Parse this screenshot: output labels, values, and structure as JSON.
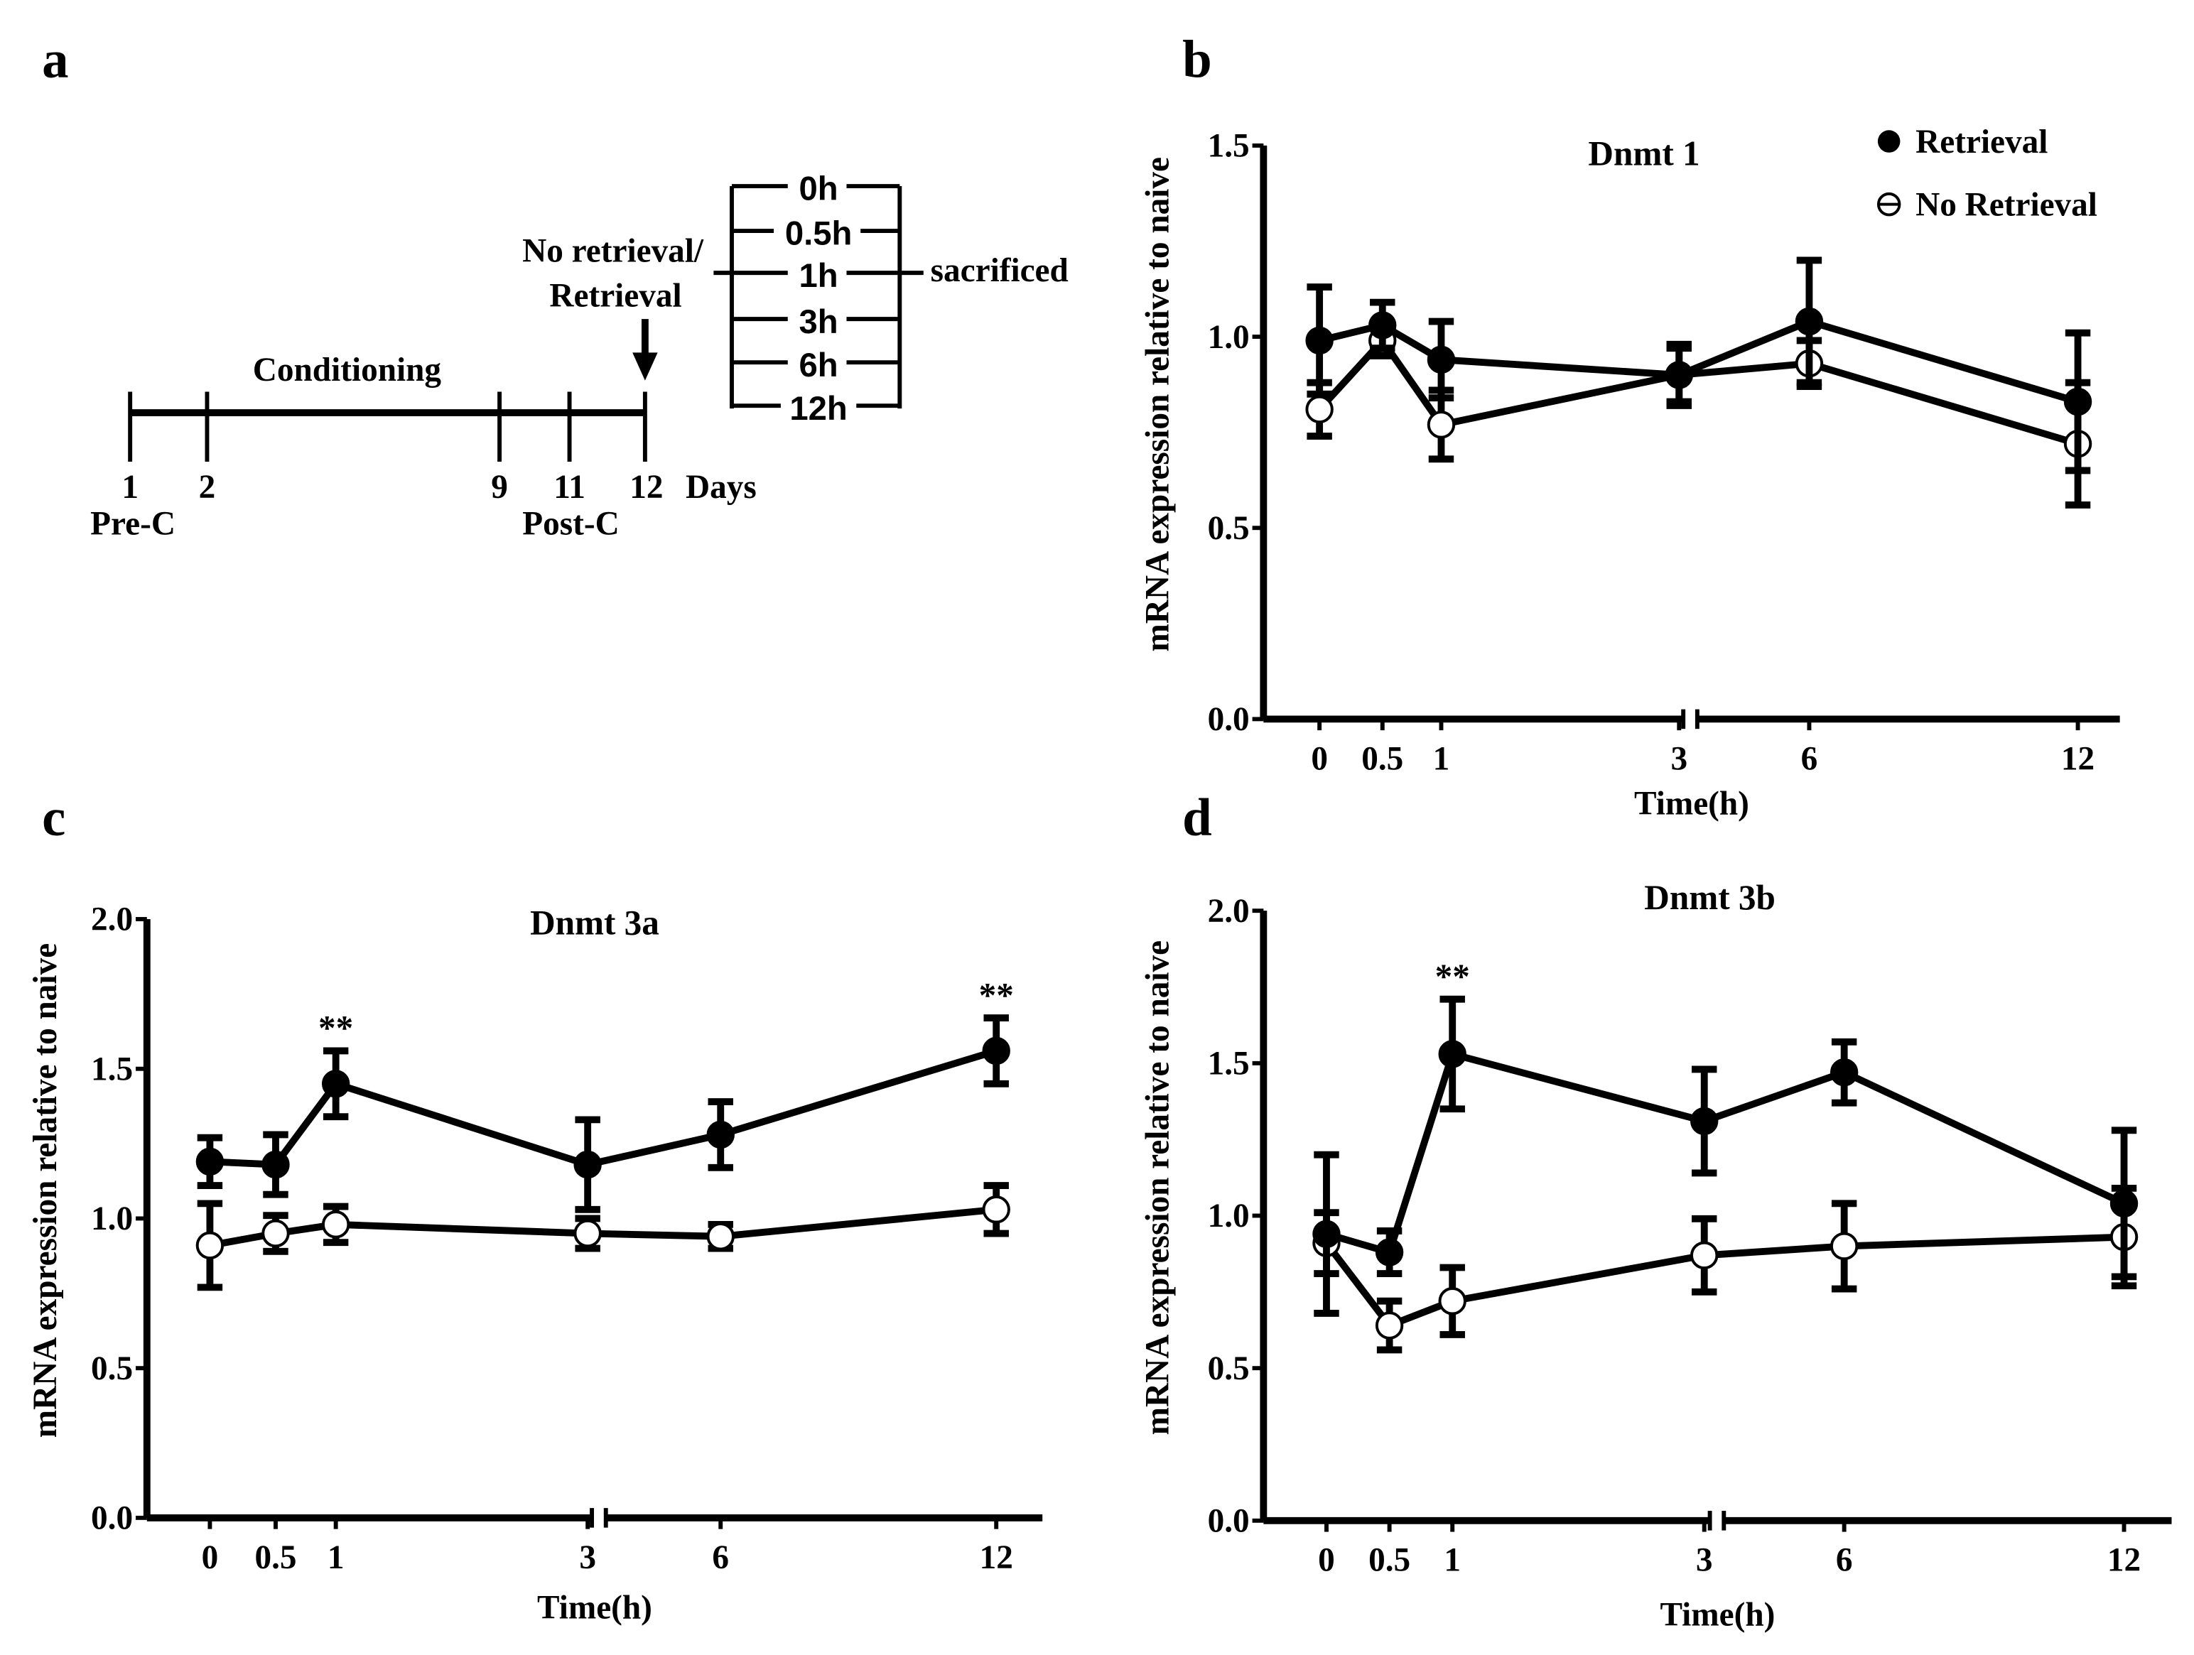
{
  "panel_a": {
    "label": "a",
    "conditioning": "Conditioning",
    "retrieval_line1": "No retrieval/",
    "retrieval_line2": "Retrieval",
    "day_ticks": [
      "1",
      "2",
      "9",
      "11",
      "12"
    ],
    "days_label": "Days",
    "pre_c": "Pre-C",
    "post_c": "Post-C",
    "timepoints": [
      "0h",
      "0.5h",
      "1h",
      "3h",
      "6h",
      "12h"
    ],
    "sacrificed": "sacrificed"
  },
  "legend": {
    "retrieval": "Retrieval",
    "no_retrieval": "No Retrieval"
  },
  "chart_data": [
    {
      "panel": "b",
      "type": "line",
      "title": "Dnmt 1",
      "xlabel": "Time(h)",
      "ylabel": "mRNA expression relative to naive",
      "x": [
        0,
        0.5,
        1,
        3,
        6,
        12
      ],
      "x_ticks": [
        "0",
        "0.5",
        "1",
        "3",
        "6",
        "12"
      ],
      "ylim": [
        0,
        1.5
      ],
      "y_ticks": [
        "0.0",
        "0.5",
        "1.0",
        "1.5"
      ],
      "y_tick_values": [
        0,
        0.5,
        1.0,
        1.5
      ],
      "axis_break": "between 3 and 6",
      "legend_position": "top-right",
      "series": [
        {
          "name": "Retrieval",
          "marker": "filled-circle",
          "values": [
            0.99,
            1.03,
            0.94,
            0.9,
            1.04,
            0.83
          ],
          "error": [
            0.14,
            0.06,
            0.1,
            0.08,
            0.16,
            0.18
          ]
        },
        {
          "name": "No Retrieval",
          "marker": "open-circle",
          "values": [
            0.81,
            0.99,
            0.77,
            0.9,
            0.93,
            0.72
          ],
          "error": [
            0.07,
            0.04,
            0.09,
            0.07,
            0.06,
            0.16
          ]
        }
      ],
      "annotations": []
    },
    {
      "panel": "c",
      "type": "line",
      "title": "Dnmt 3a",
      "xlabel": "Time(h)",
      "ylabel": "mRNA expression relative to naive",
      "x": [
        0,
        0.5,
        1,
        3,
        6,
        12
      ],
      "x_ticks": [
        "0",
        "0.5",
        "1",
        "3",
        "6",
        "12"
      ],
      "ylim": [
        0,
        2.0
      ],
      "y_ticks": [
        "0.0",
        "0.5",
        "1.0",
        "1.5",
        "2.0"
      ],
      "y_tick_values": [
        0,
        0.5,
        1.0,
        1.5,
        2.0
      ],
      "axis_break": "between 3 and 6",
      "series": [
        {
          "name": "Retrieval",
          "marker": "filled-circle",
          "values": [
            1.19,
            1.18,
            1.45,
            1.18,
            1.28,
            1.56
          ],
          "error": [
            0.08,
            0.1,
            0.11,
            0.15,
            0.11,
            0.11
          ]
        },
        {
          "name": "No Retrieval",
          "marker": "open-circle",
          "values": [
            0.91,
            0.95,
            0.98,
            0.95,
            0.94,
            1.03
          ],
          "error": [
            0.14,
            0.06,
            0.06,
            0.05,
            0.04,
            0.08
          ]
        }
      ],
      "annotations": [
        {
          "x": 1,
          "text": "**"
        },
        {
          "x": 12,
          "text": "**"
        }
      ]
    },
    {
      "panel": "d",
      "type": "line",
      "title": "Dnmt 3b",
      "xlabel": "Time(h)",
      "ylabel": "mRNA expression relative to naive",
      "x": [
        0,
        0.5,
        1,
        3,
        6,
        12
      ],
      "x_ticks": [
        "0",
        "0.5",
        "1",
        "3",
        "6",
        "12"
      ],
      "ylim": [
        0,
        2.0
      ],
      "y_ticks": [
        "0.0",
        "0.5",
        "1.0",
        "1.5",
        "2.0"
      ],
      "y_tick_values": [
        0,
        0.5,
        1.0,
        1.5,
        2.0
      ],
      "axis_break": "between 3 and 6",
      "series": [
        {
          "name": "Retrieval",
          "marker": "filled-circle",
          "values": [
            0.94,
            0.88,
            1.53,
            1.31,
            1.47,
            1.04
          ],
          "error": [
            0.26,
            0.07,
            0.18,
            0.17,
            0.1,
            0.24
          ]
        },
        {
          "name": "No Retrieval",
          "marker": "open-circle",
          "values": [
            0.91,
            0.64,
            0.72,
            0.87,
            0.9,
            0.93
          ],
          "error": [
            0.1,
            0.08,
            0.11,
            0.12,
            0.14,
            0.16
          ]
        }
      ],
      "annotations": [
        {
          "x": 1,
          "text": "**"
        }
      ]
    }
  ]
}
